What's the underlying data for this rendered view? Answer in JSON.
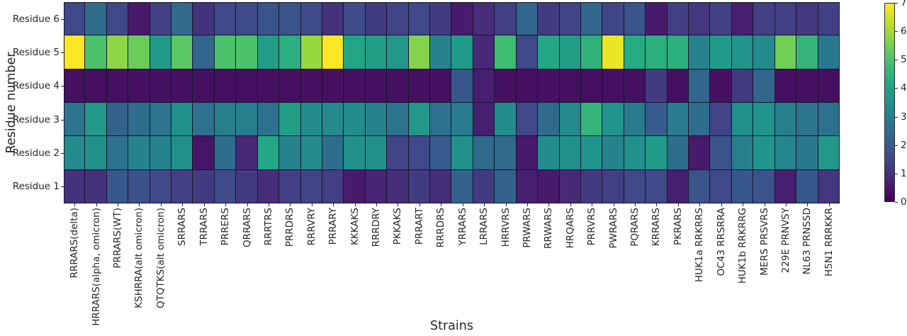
{
  "chart_data": {
    "type": "heatmap",
    "xlabel": "Strains",
    "ylabel": "Residue number",
    "colormap": "viridis",
    "grid_line_color": "#151528",
    "text_color": "#262626",
    "background": "#ffffff",
    "colorbar": {
      "min": 0,
      "max": 7,
      "ticks": [
        "0",
        "1",
        "2",
        "3",
        "4",
        "5",
        "6",
        "7"
      ]
    },
    "colormap_stops": [
      [
        0.0,
        "#440154"
      ],
      [
        0.1,
        "#482475"
      ],
      [
        0.2,
        "#414487"
      ],
      [
        0.3,
        "#355f8d"
      ],
      [
        0.4,
        "#2a788e"
      ],
      [
        0.5,
        "#21918c"
      ],
      [
        0.6,
        "#22a884"
      ],
      [
        0.7,
        "#44bf70"
      ],
      [
        0.8,
        "#7ad151"
      ],
      [
        0.9,
        "#bddf26"
      ],
      [
        1.0,
        "#fde725"
      ]
    ],
    "columns": [
      "RRRARS(delta)",
      "HRRARS(alpha, omicron)",
      "PRRARS(WT)",
      "KSHRRA(alt omicron)",
      "QTQTKS(alt omicron)",
      "SRRARS",
      "TRRARS",
      "PRRERS",
      "QRRARS",
      "RRRTRS",
      "PRRDRS",
      "RRRVRY",
      "PRRARY",
      "KKKAKS",
      "RRRDRY",
      "PKKAKS",
      "PRRART",
      "RRRDRS",
      "YRRARS",
      "LRRARS",
      "HRRVRS",
      "PRWARS",
      "RRWARS",
      "HRQARS",
      "PRRVRS",
      "PWRARS",
      "PQRARS",
      "KRRARS",
      "PKRARS",
      "HUK1a RRKRRS",
      "OC43 RRSRRA",
      "HUK1b RRKRRG",
      "MERS PRSVRS",
      "229E PRNVSY",
      "NL63 PRNSSD",
      "H5N1 RRRKKR"
    ],
    "rows": [
      {
        "label": "Residue 6",
        "values": [
          1.5,
          2.5,
          1.5,
          0.5,
          1.3,
          2.4,
          1.0,
          1.5,
          1.6,
          1.8,
          1.8,
          1.6,
          1.0,
          1.6,
          1.2,
          1.4,
          1.5,
          1.2,
          0.5,
          0.9,
          1.3,
          2.3,
          1.2,
          1.4,
          2.3,
          1.4,
          1.8,
          0.5,
          1.3,
          1.1,
          1.3,
          0.6,
          1.3,
          1.3,
          1.1,
          1.3
        ]
      },
      {
        "label": "Residue 5",
        "values": [
          7.0,
          5.0,
          5.8,
          5.4,
          3.8,
          5.2,
          2.3,
          5.0,
          5.0,
          3.9,
          4.4,
          5.9,
          7.0,
          4.1,
          3.9,
          3.7,
          5.7,
          3.1,
          3.8,
          0.8,
          4.8,
          1.5,
          4.2,
          3.9,
          4.5,
          6.8,
          4.3,
          4.4,
          4.4,
          3.1,
          3.8,
          3.6,
          3.3,
          5.5,
          4.6,
          2.8
        ]
      },
      {
        "label": "Residue 4",
        "values": [
          0.3,
          0.3,
          0.3,
          0.3,
          0.3,
          0.3,
          0.3,
          0.3,
          0.3,
          0.3,
          0.3,
          0.3,
          0.3,
          0.3,
          0.3,
          0.3,
          0.3,
          0.3,
          1.9,
          0.6,
          0.3,
          0.3,
          0.3,
          0.3,
          0.3,
          0.3,
          0.3,
          1.2,
          0.3,
          2.3,
          0.3,
          1.2,
          2.3,
          0.3,
          0.3,
          0.3
        ]
      },
      {
        "label": "Residue 3",
        "values": [
          2.7,
          3.7,
          2.2,
          2.5,
          2.7,
          3.5,
          2.6,
          3.0,
          3.0,
          2.6,
          3.9,
          3.4,
          3.3,
          3.4,
          3.1,
          2.7,
          3.7,
          2.6,
          2.9,
          0.6,
          3.4,
          1.5,
          2.4,
          3.3,
          4.6,
          3.6,
          2.9,
          2.0,
          2.9,
          2.5,
          1.4,
          3.5,
          3.6,
          3.0,
          2.7,
          2.6
        ]
      },
      {
        "label": "Residue 2",
        "values": [
          3.3,
          3.5,
          2.6,
          3.1,
          3.1,
          3.5,
          0.4,
          2.5,
          0.8,
          4.2,
          3.1,
          3.4,
          2.5,
          3.5,
          3.5,
          1.4,
          1.5,
          2.0,
          3.5,
          2.4,
          2.4,
          0.5,
          3.4,
          3.5,
          3.6,
          3.1,
          3.5,
          3.8,
          2.5,
          0.5,
          1.8,
          3.0,
          3.6,
          3.2,
          2.8,
          3.7
        ]
      },
      {
        "label": "Residue 1",
        "values": [
          1.0,
          1.0,
          1.9,
          1.7,
          1.5,
          1.3,
          1.2,
          1.6,
          1.2,
          0.9,
          1.3,
          1.4,
          1.3,
          0.5,
          0.7,
          0.9,
          1.2,
          0.9,
          2.2,
          1.2,
          2.2,
          0.6,
          0.5,
          0.8,
          1.2,
          1.3,
          1.5,
          1.5,
          0.6,
          1.8,
          1.5,
          1.9,
          1.8,
          0.6,
          1.9,
          1.1
        ]
      }
    ]
  }
}
